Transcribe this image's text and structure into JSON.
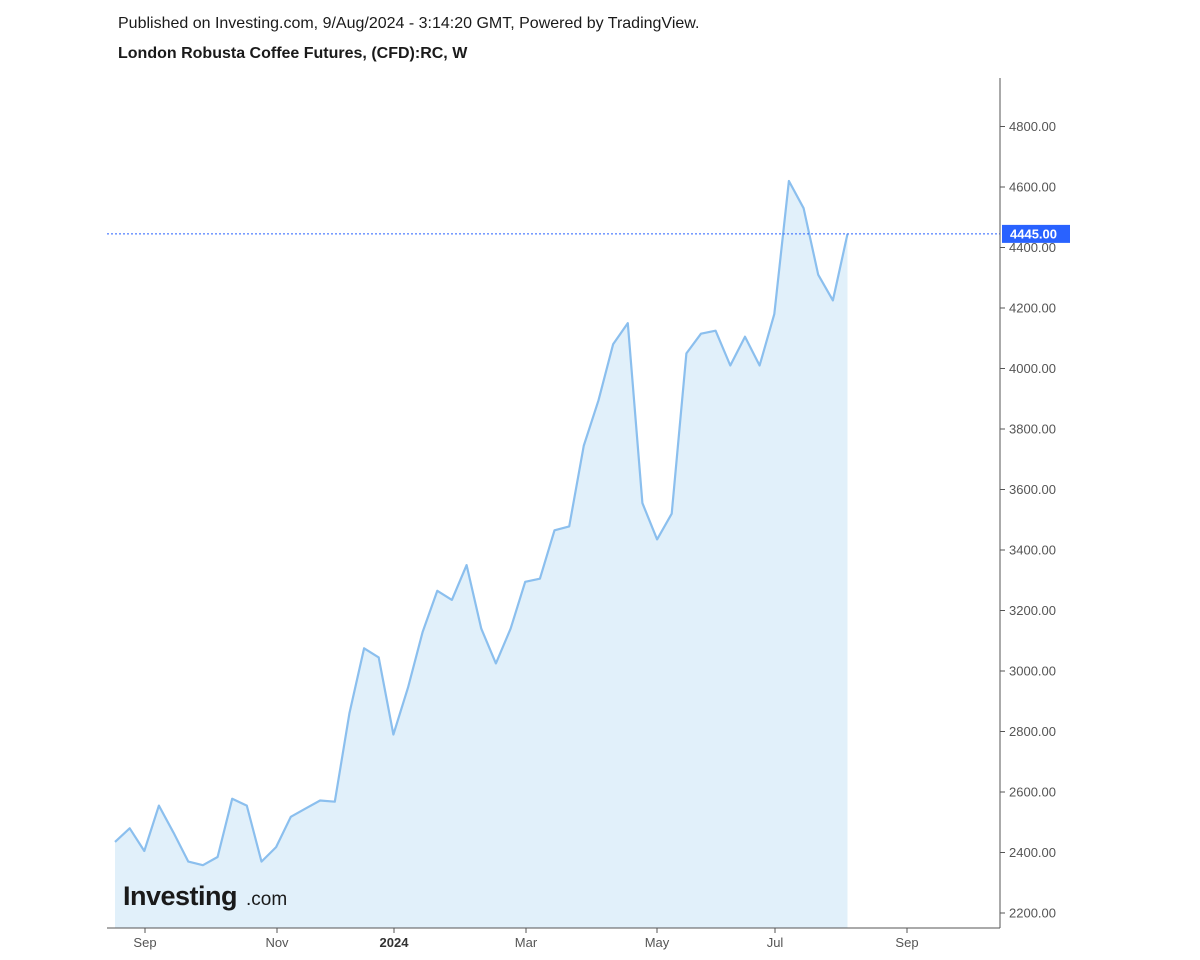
{
  "header": {
    "published": "Published on Investing.com, 9/Aug/2024 - 3:14:20 GMT, Powered by TradingView.",
    "title": "London Robusta Coffee Futures, (CFD):RC, W"
  },
  "logo": {
    "main": "Investing",
    "suffix": ".com"
  },
  "chart_data": {
    "type": "area",
    "title": "London Robusta Coffee Futures, (CFD):RC, W",
    "interval": "weekly",
    "ylim": [
      2160,
      4860
    ],
    "y_ticks": [
      "2200.00",
      "2400.00",
      "2600.00",
      "2800.00",
      "3000.00",
      "3200.00",
      "3400.00",
      "3600.00",
      "3800.00",
      "4000.00",
      "4200.00",
      "4400.00",
      "4600.00",
      "4800.00"
    ],
    "x_ticks": [
      {
        "label": "Sep",
        "bold": false
      },
      {
        "label": "Nov",
        "bold": false
      },
      {
        "label": "2024",
        "bold": true
      },
      {
        "label": "Mar",
        "bold": false
      },
      {
        "label": "May",
        "bold": false
      },
      {
        "label": "Jul",
        "bold": false
      },
      {
        "label": "Sep",
        "bold": false
      }
    ],
    "last_price": "4445.00",
    "last_value": 4445,
    "grid": false,
    "colors": {
      "line": "#8bbfee",
      "fill": "#e1f0fa",
      "price_line": "#2962ff",
      "price_label_bg": "#2962ff"
    },
    "values": [
      2435,
      2480,
      2405,
      2555,
      2465,
      2370,
      2358,
      2385,
      2578,
      2555,
      2370,
      2418,
      2518,
      2545,
      2572,
      2568,
      2860,
      3075,
      3045,
      2790,
      2945,
      3130,
      3265,
      3235,
      3350,
      3140,
      3025,
      3140,
      3295,
      3305,
      3465,
      3478,
      3745,
      3895,
      4080,
      4150,
      3555,
      3435,
      3520,
      4050,
      4115,
      4125,
      4010,
      4105,
      4010,
      4180,
      4620,
      4530,
      4310,
      4225,
      4445
    ]
  }
}
